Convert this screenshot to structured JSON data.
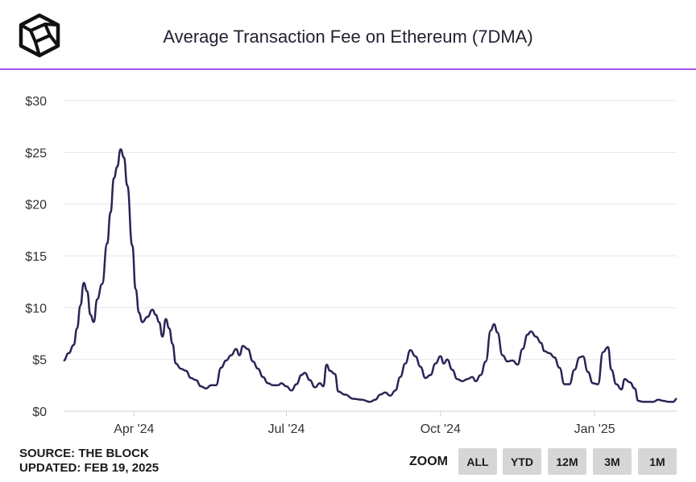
{
  "header": {
    "title": "Average Transaction Fee on Ethereum (7DMA)"
  },
  "footer": {
    "source": "SOURCE: THE BLOCK",
    "updated": "UPDATED: FEB 19, 2025"
  },
  "zoom": {
    "label": "ZOOM",
    "buttons": [
      "ALL",
      "YTD",
      "12M",
      "3M",
      "1M"
    ]
  },
  "colors": {
    "line": "#2a2456",
    "accent": "#a855f7",
    "grid": "#e6e6e6",
    "button_bg": "#d6d6d6"
  },
  "chart_data": {
    "type": "line",
    "title": "Average Transaction Fee on Ethereum (7DMA)",
    "xlabel": "",
    "ylabel": "",
    "ylim": [
      0,
      30
    ],
    "y_ticks": [
      "$0",
      "$5",
      "$10",
      "$15",
      "$20",
      "$25",
      "$30"
    ],
    "y_tick_values": [
      0,
      5,
      10,
      15,
      20,
      25,
      30
    ],
    "x_tick_labels": [
      "Apr '24",
      "Jul '24",
      "Oct '24",
      "Jan '25"
    ],
    "x_tick_dates": [
      "2024-04-01",
      "2024-07-01",
      "2024-10-01",
      "2025-01-01"
    ],
    "xlim": [
      "2024-02-19",
      "2025-02-19"
    ],
    "grid": true,
    "series": [
      {
        "values": [
          [
            "2024-02-19",
            4.9
          ],
          [
            "2024-02-22",
            5.6
          ],
          [
            "2024-02-25",
            6.4
          ],
          [
            "2024-02-27",
            8.0
          ],
          [
            "2024-02-29",
            10.2
          ],
          [
            "2024-03-02",
            12.4
          ],
          [
            "2024-03-04",
            11.6
          ],
          [
            "2024-03-06",
            9.3
          ],
          [
            "2024-03-08",
            8.6
          ],
          [
            "2024-03-10",
            10.8
          ],
          [
            "2024-03-13",
            12.3
          ],
          [
            "2024-03-16",
            16.2
          ],
          [
            "2024-03-18",
            19.2
          ],
          [
            "2024-03-20",
            22.5
          ],
          [
            "2024-03-22",
            23.6
          ],
          [
            "2024-03-24",
            25.3
          ],
          [
            "2024-03-26",
            24.5
          ],
          [
            "2024-03-28",
            21.8
          ],
          [
            "2024-03-31",
            16.0
          ],
          [
            "2024-04-02",
            11.8
          ],
          [
            "2024-04-04",
            9.5
          ],
          [
            "2024-04-06",
            8.6
          ],
          [
            "2024-04-09",
            9.1
          ],
          [
            "2024-04-12",
            9.8
          ],
          [
            "2024-04-14",
            9.3
          ],
          [
            "2024-04-16",
            8.6
          ],
          [
            "2024-04-18",
            7.2
          ],
          [
            "2024-04-20",
            8.9
          ],
          [
            "2024-04-22",
            8.0
          ],
          [
            "2024-04-24",
            6.5
          ],
          [
            "2024-04-26",
            4.6
          ],
          [
            "2024-04-29",
            4.1
          ],
          [
            "2024-05-02",
            3.9
          ],
          [
            "2024-05-05",
            3.2
          ],
          [
            "2024-05-08",
            3.0
          ],
          [
            "2024-05-11",
            2.4
          ],
          [
            "2024-05-14",
            2.2
          ],
          [
            "2024-05-17",
            2.5
          ],
          [
            "2024-05-20",
            2.5
          ],
          [
            "2024-05-23",
            4.2
          ],
          [
            "2024-05-26",
            4.9
          ],
          [
            "2024-05-29",
            5.4
          ],
          [
            "2024-06-01",
            6.0
          ],
          [
            "2024-06-03",
            5.4
          ],
          [
            "2024-06-05",
            6.3
          ],
          [
            "2024-06-08",
            6.0
          ],
          [
            "2024-06-11",
            4.8
          ],
          [
            "2024-06-14",
            4.1
          ],
          [
            "2024-06-17",
            3.3
          ],
          [
            "2024-06-20",
            2.7
          ],
          [
            "2024-06-23",
            2.5
          ],
          [
            "2024-06-26",
            2.5
          ],
          [
            "2024-06-28",
            2.7
          ],
          [
            "2024-07-01",
            2.4
          ],
          [
            "2024-07-04",
            2.0
          ],
          [
            "2024-07-07",
            2.6
          ],
          [
            "2024-07-10",
            3.5
          ],
          [
            "2024-07-12",
            3.7
          ],
          [
            "2024-07-15",
            3.0
          ],
          [
            "2024-07-18",
            2.3
          ],
          [
            "2024-07-21",
            2.7
          ],
          [
            "2024-07-23",
            2.4
          ],
          [
            "2024-07-25",
            4.5
          ],
          [
            "2024-07-27",
            3.9
          ],
          [
            "2024-07-30",
            3.6
          ],
          [
            "2024-08-01",
            1.9
          ],
          [
            "2024-08-05",
            1.6
          ],
          [
            "2024-08-10",
            1.2
          ],
          [
            "2024-08-15",
            1.1
          ],
          [
            "2024-08-20",
            0.9
          ],
          [
            "2024-08-23",
            1.1
          ],
          [
            "2024-08-26",
            1.6
          ],
          [
            "2024-08-29",
            1.8
          ],
          [
            "2024-09-01",
            1.5
          ],
          [
            "2024-09-04",
            2.0
          ],
          [
            "2024-09-07",
            3.3
          ],
          [
            "2024-09-10",
            4.6
          ],
          [
            "2024-09-13",
            5.9
          ],
          [
            "2024-09-16",
            5.3
          ],
          [
            "2024-09-19",
            4.3
          ],
          [
            "2024-09-22",
            3.2
          ],
          [
            "2024-09-25",
            3.5
          ],
          [
            "2024-09-28",
            4.6
          ],
          [
            "2024-10-01",
            5.3
          ],
          [
            "2024-10-03",
            4.6
          ],
          [
            "2024-10-05",
            5.0
          ],
          [
            "2024-10-08",
            4.0
          ],
          [
            "2024-10-11",
            3.1
          ],
          [
            "2024-10-14",
            2.9
          ],
          [
            "2024-10-17",
            3.1
          ],
          [
            "2024-10-20",
            3.3
          ],
          [
            "2024-10-22",
            2.9
          ],
          [
            "2024-10-25",
            3.5
          ],
          [
            "2024-10-28",
            4.8
          ],
          [
            "2024-10-31",
            7.8
          ],
          [
            "2024-11-02",
            8.4
          ],
          [
            "2024-11-04",
            7.6
          ],
          [
            "2024-11-07",
            5.4
          ],
          [
            "2024-11-10",
            4.8
          ],
          [
            "2024-11-13",
            4.9
          ],
          [
            "2024-11-16",
            4.5
          ],
          [
            "2024-11-19",
            6.0
          ],
          [
            "2024-11-22",
            7.4
          ],
          [
            "2024-11-24",
            7.7
          ],
          [
            "2024-11-27",
            7.2
          ],
          [
            "2024-11-30",
            6.6
          ],
          [
            "2024-12-02",
            5.8
          ],
          [
            "2024-12-05",
            5.6
          ],
          [
            "2024-12-08",
            5.2
          ],
          [
            "2024-12-11",
            4.2
          ],
          [
            "2024-12-14",
            2.6
          ],
          [
            "2024-12-17",
            2.6
          ],
          [
            "2024-12-20",
            4.0
          ],
          [
            "2024-12-23",
            5.2
          ],
          [
            "2024-12-25",
            5.3
          ],
          [
            "2024-12-28",
            3.8
          ],
          [
            "2024-12-31",
            2.7
          ],
          [
            "2025-01-03",
            2.6
          ],
          [
            "2025-01-06",
            5.7
          ],
          [
            "2025-01-09",
            6.2
          ],
          [
            "2025-01-11",
            4.0
          ],
          [
            "2025-01-14",
            2.6
          ],
          [
            "2025-01-17",
            2.1
          ],
          [
            "2025-01-19",
            3.1
          ],
          [
            "2025-01-22",
            2.8
          ],
          [
            "2025-01-25",
            2.2
          ],
          [
            "2025-01-27",
            1.0
          ],
          [
            "2025-01-30",
            0.9
          ],
          [
            "2025-02-02",
            0.9
          ],
          [
            "2025-02-05",
            0.9
          ],
          [
            "2025-02-08",
            1.1
          ],
          [
            "2025-02-11",
            1.0
          ],
          [
            "2025-02-14",
            0.9
          ],
          [
            "2025-02-17",
            0.9
          ],
          [
            "2025-02-19",
            1.2
          ]
        ]
      }
    ]
  }
}
